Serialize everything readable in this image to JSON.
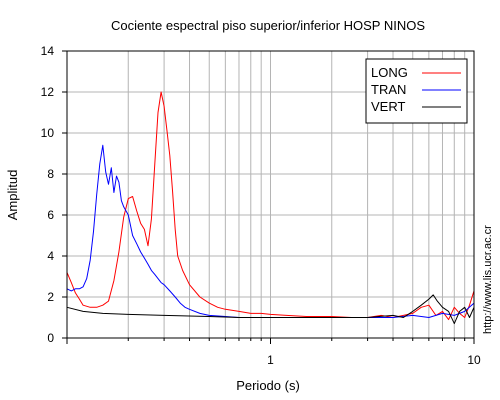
{
  "chart_data": {
    "type": "line",
    "title": "Cociente espectral piso superior/inferior  HOSP NINOS",
    "xlabel": "Periodo (s)",
    "ylabel": "Amplitud",
    "xscale": "log",
    "xlim": [
      0.1,
      10
    ],
    "ylim": [
      0,
      14
    ],
    "x_tick_labels": [
      "1",
      "10"
    ],
    "y_tick_labels": [
      "0",
      "2",
      "4",
      "6",
      "8",
      "10",
      "12",
      "14"
    ],
    "grid": true,
    "legend_position": "top-right",
    "series": [
      {
        "name": "LONG",
        "color": "#ff0000",
        "x": [
          0.1,
          0.105,
          0.11,
          0.115,
          0.12,
          0.13,
          0.14,
          0.15,
          0.16,
          0.17,
          0.18,
          0.19,
          0.2,
          0.21,
          0.22,
          0.23,
          0.24,
          0.25,
          0.26,
          0.27,
          0.28,
          0.29,
          0.3,
          0.31,
          0.32,
          0.33,
          0.34,
          0.35,
          0.37,
          0.4,
          0.45,
          0.5,
          0.55,
          0.6,
          0.7,
          0.8,
          0.9,
          1.0,
          1.2,
          1.5,
          2.0,
          2.5,
          3,
          3.5,
          4,
          4.5,
          5,
          5.5,
          6,
          6.5,
          7,
          7.5,
          8,
          8.5,
          9,
          9.5,
          10
        ],
        "y": [
          3.2,
          2.7,
          2.2,
          1.9,
          1.6,
          1.5,
          1.5,
          1.6,
          1.8,
          2.8,
          4.2,
          5.9,
          6.8,
          6.9,
          6.2,
          5.6,
          5.3,
          4.5,
          5.8,
          8.5,
          11.0,
          12.0,
          11.3,
          10.1,
          8.9,
          7.2,
          5.3,
          4.0,
          3.3,
          2.6,
          2.0,
          1.7,
          1.5,
          1.4,
          1.3,
          1.2,
          1.2,
          1.15,
          1.1,
          1.05,
          1.05,
          1.0,
          1.0,
          1.1,
          1.0,
          1.1,
          1.2,
          1.5,
          1.6,
          1.1,
          1.3,
          0.9,
          1.5,
          1.2,
          1.0,
          1.6,
          2.3
        ]
      },
      {
        "name": "TRAN",
        "color": "#0000ff",
        "x": [
          0.1,
          0.105,
          0.11,
          0.115,
          0.12,
          0.125,
          0.13,
          0.135,
          0.14,
          0.145,
          0.15,
          0.155,
          0.16,
          0.165,
          0.17,
          0.175,
          0.18,
          0.185,
          0.19,
          0.2,
          0.21,
          0.22,
          0.23,
          0.24,
          0.25,
          0.26,
          0.27,
          0.28,
          0.29,
          0.3,
          0.32,
          0.34,
          0.36,
          0.38,
          0.4,
          0.45,
          0.5,
          0.6,
          0.7,
          0.8,
          1.0,
          1.5,
          2,
          3,
          4,
          5,
          6,
          7,
          8,
          9,
          10
        ],
        "y": [
          2.4,
          2.3,
          2.4,
          2.4,
          2.5,
          2.9,
          3.8,
          5.2,
          7.0,
          8.5,
          9.4,
          8.1,
          7.5,
          8.3,
          7.1,
          7.9,
          7.6,
          6.7,
          6.4,
          6.0,
          5.0,
          4.6,
          4.2,
          3.9,
          3.6,
          3.3,
          3.1,
          2.9,
          2.7,
          2.6,
          2.3,
          2.0,
          1.7,
          1.5,
          1.4,
          1.2,
          1.1,
          1.05,
          1.0,
          1.0,
          1.0,
          1.0,
          1.0,
          1.0,
          1.0,
          1.1,
          1.0,
          1.2,
          1.1,
          1.3,
          1.7
        ]
      },
      {
        "name": "VERT",
        "color": "#000000",
        "x": [
          0.1,
          0.12,
          0.15,
          0.2,
          0.3,
          0.5,
          0.7,
          1.0,
          1.5,
          2,
          3,
          4,
          4.5,
          5,
          5.5,
          6,
          6.3,
          6.6,
          7,
          7.5,
          8,
          8.5,
          9,
          9.5,
          10
        ],
        "y": [
          1.5,
          1.3,
          1.2,
          1.15,
          1.1,
          1.05,
          1.0,
          1.0,
          1.0,
          1.0,
          1.0,
          1.1,
          1.0,
          1.3,
          1.6,
          1.9,
          2.1,
          1.8,
          1.5,
          1.3,
          0.7,
          1.3,
          1.5,
          1.0,
          1.5
        ]
      }
    ]
  },
  "side_text": "http://www.lis.ucr.ac.cr"
}
